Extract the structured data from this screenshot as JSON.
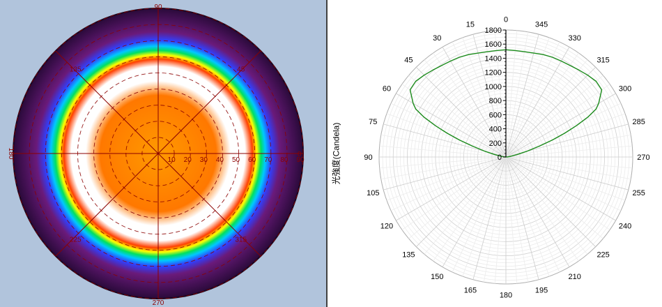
{
  "chart_data": [
    {
      "type": "heatmap",
      "title": "",
      "angle_labels": [
        "90",
        "45",
        "0",
        "315",
        "270",
        "225",
        "180",
        "135"
      ],
      "radius_labels": [
        "10",
        "20",
        "30",
        "40",
        "50",
        "60",
        "70",
        "80",
        "90"
      ],
      "ring_angles_deg": [
        10,
        20,
        30,
        40,
        50,
        60,
        70,
        80,
        90
      ],
      "colors": {
        "background": "#b1c4dc",
        "grid": "#8b0000",
        "colormap": [
          "#2a0a3a",
          "#6a1a7a",
          "#3040ff",
          "#00c8ff",
          "#00e060",
          "#ffff00",
          "#ff4000",
          "#ffffff",
          "#ff7800",
          "#ff9a00"
        ]
      }
    },
    {
      "type": "line",
      "polar": true,
      "title": "",
      "ylabel": "光強度(Candela)",
      "r_ticks": [
        0,
        200,
        400,
        600,
        800,
        1000,
        1200,
        1400,
        1600,
        1800
      ],
      "r_range": [
        0,
        1800
      ],
      "angle_ticks": [
        0,
        345,
        330,
        315,
        300,
        285,
        270,
        255,
        240,
        225,
        210,
        195,
        180,
        165,
        150,
        135,
        120,
        105,
        90,
        75,
        60,
        45,
        30,
        15
      ],
      "grid": true,
      "series": [
        {
          "color": "#1a8a1a",
          "theta": [
            0,
            5,
            10,
            15,
            20,
            25,
            30,
            35,
            40,
            45,
            50,
            55,
            60,
            62,
            64,
            66,
            68,
            70,
            72,
            75,
            78,
            82,
            86,
            89,
            90,
            270,
            271,
            274,
            278,
            282,
            285,
            288,
            290,
            292,
            294,
            296,
            298,
            300,
            305,
            310,
            315,
            320,
            325,
            330,
            335,
            340,
            345,
            350,
            355,
            360
          ],
          "r": [
            1520,
            1515,
            1515,
            1525,
            1545,
            1560,
            1570,
            1585,
            1610,
            1640,
            1670,
            1660,
            1520,
            1450,
            1300,
            1100,
            900,
            700,
            500,
            300,
            160,
            70,
            20,
            5,
            0,
            0,
            5,
            20,
            70,
            160,
            300,
            500,
            700,
            900,
            1100,
            1300,
            1450,
            1520,
            1660,
            1670,
            1640,
            1610,
            1585,
            1570,
            1560,
            1545,
            1525,
            1515,
            1515,
            1520
          ]
        }
      ]
    }
  ]
}
